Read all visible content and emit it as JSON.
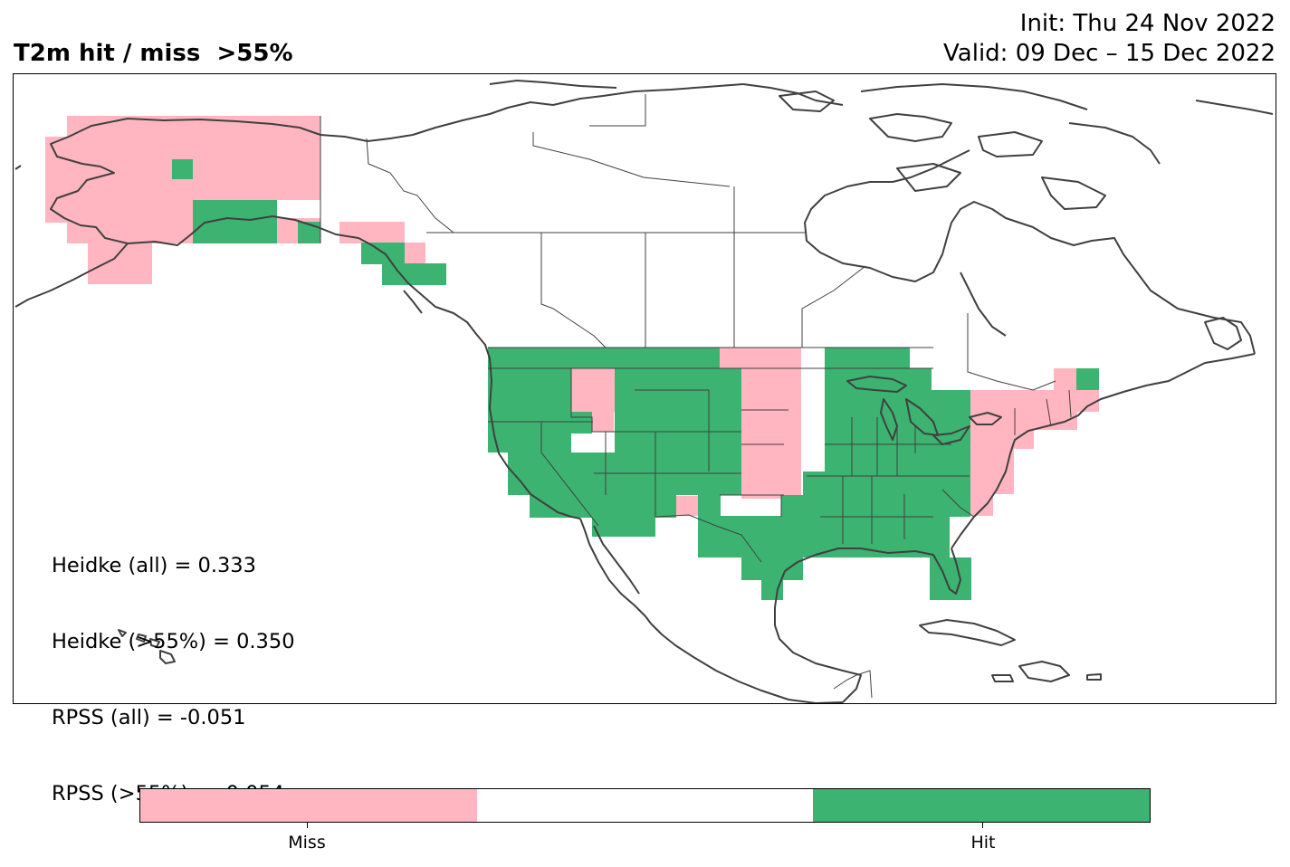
{
  "header": {
    "title": "T2m hit / miss  >55%",
    "init": "Init: Thu 24 Nov 2022",
    "valid": "Valid: 09 Dec – 15 Dec 2022"
  },
  "stats": [
    "Heidke (all) = 0.333",
    "Heidke (>55%) = 0.350",
    "RPSS (all) = -0.051",
    "RPSS (>55%) = -0.054"
  ],
  "legend": {
    "colors": {
      "miss": "#ffb6c1",
      "neutral": "#ffffff",
      "hit": "#3cb371"
    },
    "labels": {
      "miss": "Miss",
      "hit": "Hit"
    }
  },
  "colors": {
    "coast": "#404040",
    "border": "#404040"
  }
}
